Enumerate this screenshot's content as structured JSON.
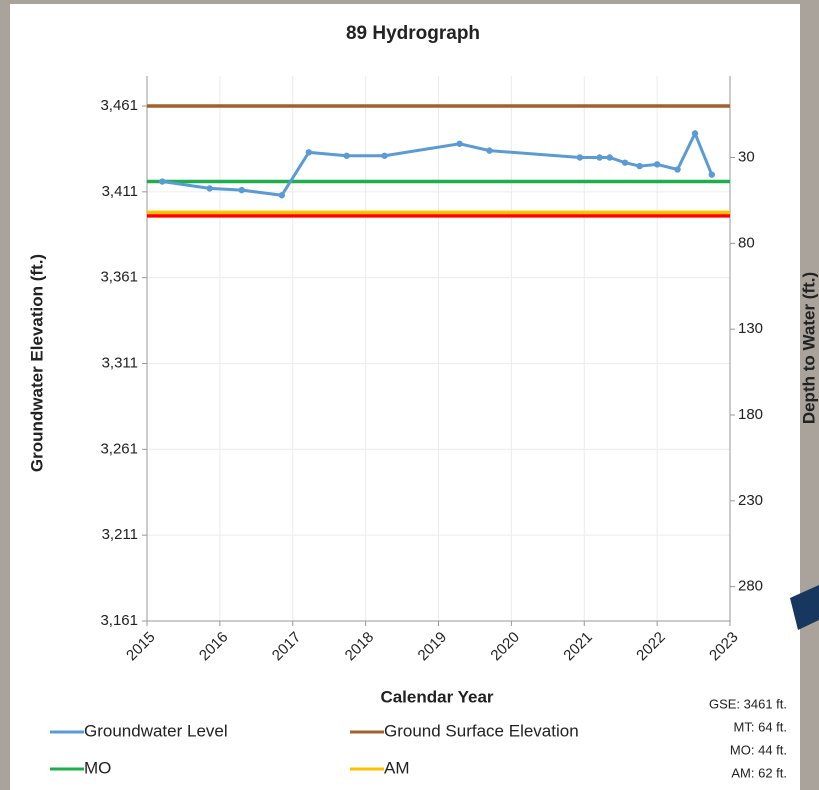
{
  "chart_data": {
    "type": "line",
    "title": "89 Hydrograph",
    "x_label": "Calendar Year",
    "y_label": "Groundwater Elevation (ft.)",
    "y2_label": "Depth to Water (ft.)",
    "xlim": [
      2015,
      2023
    ],
    "xticks": [
      2015,
      2016,
      2017,
      2018,
      2019,
      2020,
      2021,
      2022,
      2023
    ],
    "ylim": [
      3161,
      3461
    ],
    "yticks": [
      {
        "value": 3161,
        "label": "3,161"
      },
      {
        "value": 3211,
        "label": "3,211"
      },
      {
        "value": 3261,
        "label": "3,261"
      },
      {
        "value": 3311,
        "label": "3,311"
      },
      {
        "value": 3361,
        "label": "3,361"
      },
      {
        "value": 3411,
        "label": "3,411"
      },
      {
        "value": 3461,
        "label": "3,461"
      }
    ],
    "y2lim": [
      300,
      0
    ],
    "y2ticks": [
      30,
      80,
      130,
      180,
      230,
      280
    ],
    "grid": true,
    "series": [
      {
        "name": "Groundwater Level",
        "color": "#5b9bd5",
        "markers": true,
        "x": [
          2015.21,
          2015.86,
          2016.3,
          2016.85,
          2017.22,
          2017.74,
          2018.26,
          2019.29,
          2019.7,
          2020.94,
          2021.21,
          2021.35,
          2021.56,
          2021.76,
          2022.0,
          2022.28,
          2022.52,
          2022.75
        ],
        "values": [
          3417,
          3413,
          3412,
          3409,
          3434,
          3432,
          3432,
          3439,
          3435,
          3431,
          3431,
          3431,
          3428,
          3426,
          3427,
          3424,
          3445,
          3421
        ]
      },
      {
        "name": "Ground Surface Elevation",
        "color": "#a0622d",
        "x": [
          2015,
          2023
        ],
        "values": [
          3461,
          3461
        ]
      },
      {
        "name": "MO",
        "color": "#1fae4b",
        "x": [
          2015,
          2023
        ],
        "values": [
          3417,
          3417
        ]
      },
      {
        "name": "AM",
        "color": "#ffc000",
        "x": [
          2015,
          2023
        ],
        "values": [
          3399,
          3399
        ]
      },
      {
        "color": "#ff0000",
        "x": [
          2015,
          2023
        ],
        "values": [
          3397,
          3397
        ]
      }
    ],
    "annotations": [
      "GSE: 3461 ft.",
      "MT: 64 ft.",
      "MO: 44 ft.",
      "AM: 62 ft."
    ]
  }
}
